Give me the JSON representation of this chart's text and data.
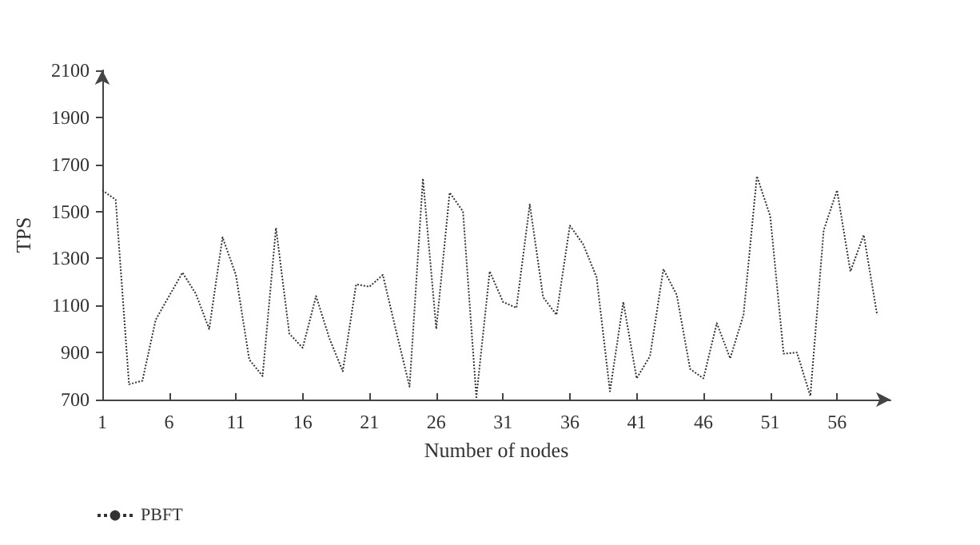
{
  "chart_data": {
    "type": "line",
    "xlabel": "Number of nodes",
    "ylabel": "TPS",
    "x": [
      1,
      2,
      3,
      4,
      5,
      6,
      7,
      8,
      9,
      10,
      11,
      12,
      13,
      14,
      15,
      16,
      17,
      18,
      19,
      20,
      21,
      22,
      23,
      24,
      25,
      26,
      27,
      28,
      29,
      30,
      31,
      32,
      33,
      34,
      35,
      36,
      37,
      38,
      39,
      40,
      41,
      42,
      43,
      44,
      45,
      46,
      47,
      48,
      49,
      50,
      51,
      52,
      53,
      54,
      55,
      56,
      57,
      58,
      59
    ],
    "series": [
      {
        "name": "PBFT",
        "color": "#333333",
        "values": [
          1590,
          1550,
          765,
          780,
          1040,
          1140,
          1240,
          1150,
          1000,
          1390,
          1230,
          870,
          800,
          1430,
          980,
          920,
          1140,
          960,
          820,
          1190,
          1180,
          1230,
          990,
          755,
          1640,
          1000,
          1580,
          1500,
          710,
          1245,
          1115,
          1090,
          1530,
          1135,
          1060,
          1440,
          1360,
          1220,
          735,
          1115,
          790,
          885,
          1255,
          1145,
          830,
          790,
          1025,
          875,
          1060,
          1650,
          1480,
          895,
          900,
          715,
          1420,
          1590,
          1245,
          1400,
          1060
        ]
      }
    ],
    "xlim": [
      1,
      60
    ],
    "xticks": [
      1,
      6,
      11,
      16,
      21,
      26,
      31,
      36,
      41,
      46,
      51,
      56
    ],
    "ylim": [
      700,
      2100
    ],
    "yticks": [
      700,
      900,
      1100,
      1300,
      1500,
      1700,
      1900,
      2100
    ],
    "grid": false,
    "legend": "bottom left",
    "marker": "none",
    "line_style": "dotted"
  }
}
